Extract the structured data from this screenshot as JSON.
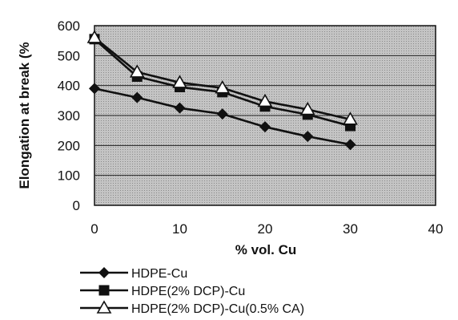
{
  "chart_data": {
    "type": "line",
    "xlabel": "% vol. Cu",
    "ylabel": "Elongation at break (%",
    "xlim": [
      0,
      40
    ],
    "ylim": [
      0,
      600
    ],
    "xticks": [
      0,
      10,
      20,
      30,
      40
    ],
    "yticks": [
      0,
      100,
      200,
      300,
      400,
      500,
      600
    ],
    "grid": "horizontal",
    "legend": "bottom",
    "series": [
      {
        "name": "HDPE-Cu",
        "marker": "diamond",
        "x": [
          0,
          5,
          10,
          15,
          20,
          25,
          30
        ],
        "y": [
          390,
          360,
          325,
          305,
          262,
          230,
          203
        ]
      },
      {
        "name": "HDPE(2% DCP)-Cu",
        "marker": "square",
        "x": [
          0,
          5,
          10,
          15,
          20,
          25,
          30
        ],
        "y": [
          555,
          430,
          395,
          378,
          330,
          303,
          265
        ]
      },
      {
        "name": "HDPE(2% DCP)-Cu(0.5% CA)",
        "marker": "triangle",
        "x": [
          0,
          5,
          10,
          15,
          20,
          25,
          30
        ],
        "y": [
          560,
          445,
          410,
          392,
          347,
          320,
          287
        ]
      }
    ]
  }
}
